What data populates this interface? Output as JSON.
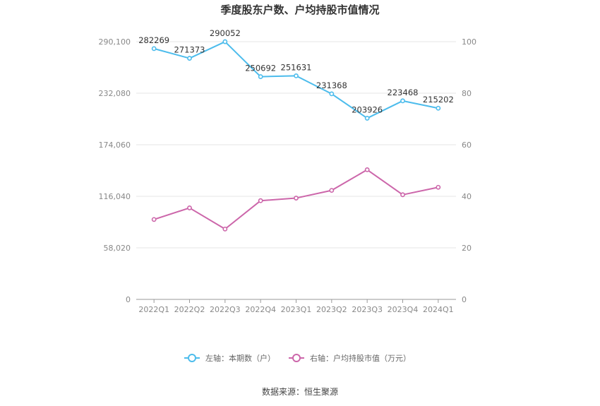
{
  "chart_data": {
    "type": "line",
    "title": "季度股东户数、户均持股市值情况",
    "categories": [
      "2022Q1",
      "2022Q2",
      "2022Q3",
      "2022Q4",
      "2023Q1",
      "2023Q2",
      "2023Q3",
      "2023Q4",
      "2024Q1"
    ],
    "series": [
      {
        "name": "左轴：本期数（户）",
        "axis": "left",
        "color": "#4cbcec",
        "values": [
          282269,
          271373,
          290052,
          250692,
          251631,
          231368,
          203926,
          223468,
          215202
        ],
        "data_labels": [
          "282269",
          "271373",
          "290052",
          "250692",
          "251631",
          "231368",
          "203926",
          "223468",
          "215202"
        ]
      },
      {
        "name": "右轴：户均持股市值（万元）",
        "axis": "right",
        "color": "#cc66aa",
        "values": [
          31.0,
          35.5,
          27.3,
          38.3,
          39.3,
          42.3,
          50.3,
          40.6,
          43.5
        ]
      }
    ],
    "y_left": {
      "min": 0,
      "max": 290100,
      "ticks": [
        0,
        58020,
        116040,
        174060,
        232080,
        290100
      ],
      "tick_labels": [
        "0",
        "58,020",
        "116,040",
        "174,060",
        "232,080",
        "290,100"
      ]
    },
    "y_right": {
      "min": 0,
      "max": 100,
      "ticks": [
        0,
        20,
        40,
        60,
        80,
        100
      ],
      "tick_labels": [
        "0",
        "20",
        "40",
        "60",
        "80",
        "100"
      ]
    },
    "grid": true,
    "legend_position": "bottom"
  },
  "source_text": "数据来源：恒生聚源"
}
